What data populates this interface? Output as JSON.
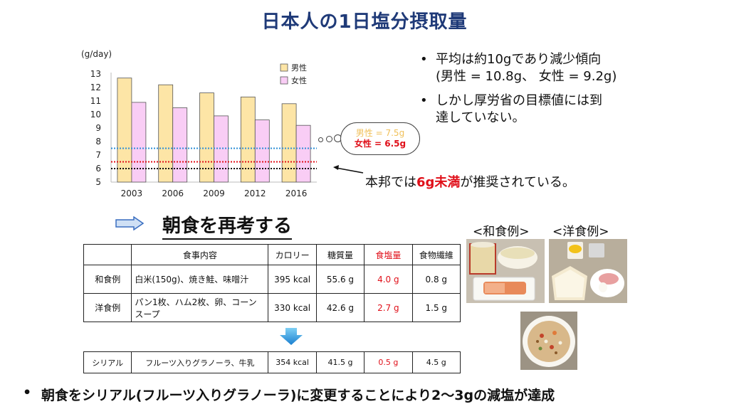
{
  "title": "日本人の1日塩分摂取量",
  "chart_data": {
    "type": "bar",
    "ylabel": "(g/day)",
    "ylim": [
      5,
      13
    ],
    "yticks": [
      5,
      6,
      7,
      8,
      9,
      10,
      11,
      12,
      13
    ],
    "categories": [
      "2003",
      "2006",
      "2009",
      "2012",
      "2016"
    ],
    "series": [
      {
        "name": "男性",
        "color": "#fde5a6",
        "values": [
          12.7,
          12.2,
          11.6,
          11.3,
          10.8
        ]
      },
      {
        "name": "女性",
        "color": "#f9cdf5",
        "values": [
          10.9,
          10.5,
          9.9,
          9.6,
          9.2
        ]
      }
    ],
    "reference_lines": [
      {
        "value": 7.5,
        "color": "#2e8fd6"
      },
      {
        "value": 6.5,
        "color": "#e0101a"
      },
      {
        "value": 6.0,
        "color": "#111111"
      }
    ]
  },
  "bullets": {
    "b1_line1": "平均は約10gであり減少傾向",
    "b1_line2": "(男性 = 10.8g、 女性 = 9.2g)",
    "b2_line1": "しかし厚労省の目標値には到",
    "b2_line2": "達していない。"
  },
  "bubble": {
    "male": "男性 = 7.5g",
    "female": "女性 = 6.5g"
  },
  "note": {
    "pre": "本邦では",
    "red": "6g未満",
    "post": "が推奨されている。"
  },
  "section_title": "朝食を再考する",
  "table": {
    "headers": [
      "",
      "食事内容",
      "カロリー",
      "糖質量",
      "食塩量",
      "食物繊維"
    ],
    "rows": [
      [
        "和食例",
        "白米(150g)、焼き鮭、味噌汁",
        "395 kcal",
        "55.6 g",
        "4.0 g",
        "0.8 g"
      ],
      [
        "洋食例",
        "パン1枚、ハム2枚、卵、コーンスープ",
        "330 kcal",
        "42.6 g",
        "2.7 g",
        "1.5 g"
      ]
    ]
  },
  "cereal_row": [
    "シリアル",
    "フルーツ入りグラノーラ、牛乳",
    "354 kcal",
    "41.5 g",
    "0.5 g",
    "4.5 g"
  ],
  "photo_labels": {
    "japanese": "<和食例>",
    "western": "<洋食例>"
  },
  "conclusion": "朝食をシリアル(フルーツ入りグラノーラ)に変更することにより2〜3gの減塩が達成"
}
